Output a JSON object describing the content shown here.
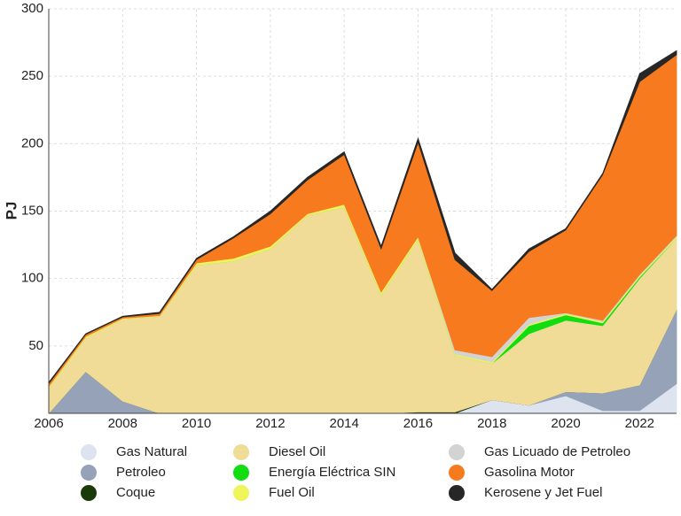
{
  "chart_data": {
    "type": "stacked_area",
    "y_label": "PJ",
    "x": [
      2006,
      2007,
      2008,
      2009,
      2010,
      2011,
      2012,
      2013,
      2014,
      2015,
      2016,
      2017,
      2018,
      2019,
      2020,
      2021,
      2022,
      2023
    ],
    "xlim": [
      2006,
      2023
    ],
    "xticks": [
      2006,
      2008,
      2010,
      2012,
      2014,
      2016,
      2018,
      2020,
      2022
    ],
    "ylim": [
      0,
      300
    ],
    "yticks": [
      50,
      100,
      150,
      200,
      250,
      300
    ],
    "grid": true,
    "legend": "bottom",
    "series": [
      {
        "name": "Gas Natural",
        "color": "#dde4ef",
        "values": [
          0,
          0,
          0,
          0,
          0,
          0,
          0,
          0,
          0,
          0,
          0,
          0,
          10,
          6,
          13,
          2,
          2,
          22
        ]
      },
      {
        "name": "Petroleo",
        "color": "#95a2b8",
        "values": [
          0,
          31,
          9,
          0,
          0,
          0,
          0,
          0,
          0,
          0,
          0,
          0,
          0,
          0,
          3,
          13,
          19,
          55
        ]
      },
      {
        "name": "Coque",
        "color": "#1a3a0a",
        "values": [
          0,
          0,
          0,
          0,
          0,
          0,
          0,
          0,
          0,
          0,
          1,
          1,
          0,
          0,
          0,
          0,
          0,
          0
        ]
      },
      {
        "name": "Diesel Oil",
        "color": "#f0dc96",
        "values": [
          19,
          25,
          61,
          72,
          110,
          113,
          122,
          147,
          153,
          88,
          128,
          42,
          27,
          53,
          53,
          50,
          79,
          53
        ]
      },
      {
        "name": "Energía Eléctrica SIN",
        "color": "#11dd11",
        "values": [
          0,
          0,
          0,
          0,
          0,
          0,
          0,
          0,
          0,
          0,
          0,
          0,
          0,
          6,
          4,
          2,
          1,
          0
        ]
      },
      {
        "name": "Fuel Oil",
        "color": "#eef55a",
        "values": [
          1,
          1,
          0.5,
          0.5,
          1.5,
          2,
          2,
          1,
          2,
          2,
          2,
          1,
          1,
          1,
          1,
          1,
          1,
          1
        ]
      },
      {
        "name": "Gas Licuado de Petroleo",
        "color": "#d3d3d3",
        "values": [
          0,
          0,
          0,
          0,
          0,
          0,
          0,
          0,
          0,
          0,
          0,
          3,
          4,
          5,
          0.5,
          1,
          1,
          1
        ]
      },
      {
        "name": "Gasolina Motor",
        "color": "#f77a1e",
        "values": [
          2,
          1.5,
          1,
          1.5,
          2.5,
          15,
          24,
          25,
          37,
          32,
          70,
          67,
          49,
          49,
          61.5,
          108,
          143,
          134
        ]
      },
      {
        "name": "Kerosene y Jet Fuel",
        "color": "#272727",
        "values": [
          1,
          0.5,
          0.5,
          1,
          1,
          1,
          2,
          2,
          2,
          2,
          3,
          5,
          1,
          2,
          1,
          1,
          6,
          3
        ]
      }
    ]
  }
}
